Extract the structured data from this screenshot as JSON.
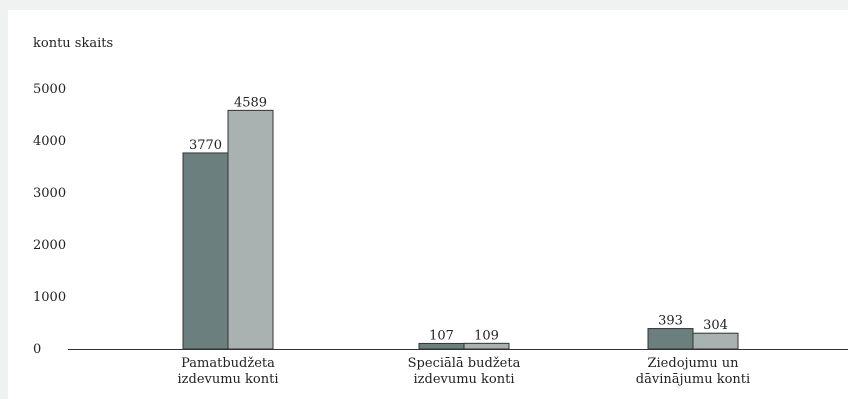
{
  "chart_data": {
    "type": "bar",
    "ylabel": "kontu skaits",
    "ylim": [
      0,
      5000
    ],
    "yticks": [
      0,
      1000,
      2000,
      3000,
      4000,
      5000
    ],
    "categories": [
      [
        "Pamatbudžeta",
        "izdevumu konti"
      ],
      [
        "Speciālā budžeta",
        "izdevumu konti"
      ],
      [
        "Ziedojumu un",
        "dāvinājumu konti"
      ]
    ],
    "series": [
      {
        "values": [
          3770,
          107,
          393
        ],
        "color": "#6b7f7f"
      },
      {
        "values": [
          4589,
          109,
          304
        ],
        "color": "#a9b2b0"
      }
    ],
    "data_labels": true,
    "grid": false
  }
}
